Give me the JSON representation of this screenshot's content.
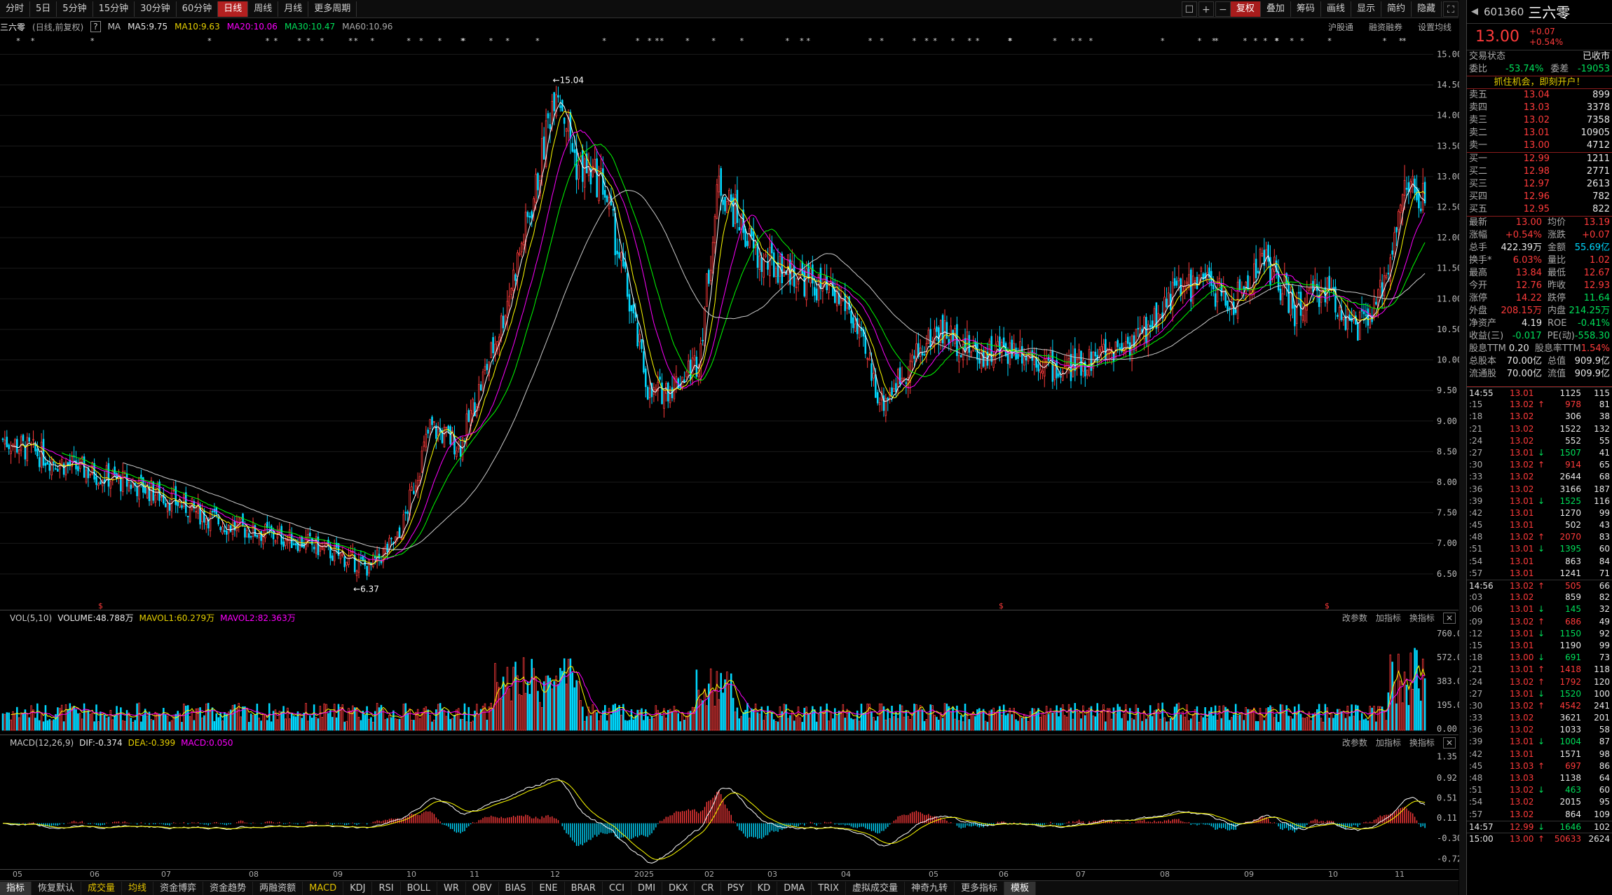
{
  "toolbar": {
    "periods": [
      "分时",
      "5日",
      "5分钟",
      "15分钟",
      "30分钟",
      "60分钟",
      "日线",
      "周线",
      "月线",
      "更多周期"
    ],
    "active": "日线",
    "right_icons": [
      "window-icon",
      "plus-icon",
      "minus-icon"
    ],
    "right": [
      "复权",
      "叠加",
      "筹码",
      "画线",
      "显示",
      "简约",
      "隐藏"
    ]
  },
  "chart_header": {
    "name": "三六零",
    "mode": "(日线,前复权)",
    "ma_label": "MA",
    "ma5": "MA5:9.75",
    "ma10": "MA10:9.63",
    "ma20": "MA20:10.06",
    "ma30": "MA30:10.47",
    "ma60": "MA60:10.96",
    "links": [
      "沪股通",
      "融资融券",
      "设置均线"
    ]
  },
  "price_axis": [
    "15.00",
    "14.50",
    "14.00",
    "13.50",
    "13.00",
    "12.50",
    "12.00",
    "11.50",
    "11.00",
    "10.50",
    "10.00",
    "9.50",
    "9.00",
    "8.50",
    "8.00",
    "7.50",
    "7.00",
    "6.50"
  ],
  "annotations": {
    "high": "15.04",
    "low": "6.37"
  },
  "vol_header": {
    "label": "VOL(5,10)",
    "volume": "VOLUME:48.788万",
    "mavol1": "MAVOL1:60.279万",
    "mavol2": "MAVOL2:82.363万",
    "actions": [
      "改参数",
      "加指标",
      "换指标"
    ]
  },
  "vol_axis": [
    "760.00",
    "572.00",
    "383.00",
    "195.00",
    "0.00"
  ],
  "macd_header": {
    "label": "MACD(12,26,9)",
    "dif": "DIF:-0.374",
    "dea": "DEA:-0.399",
    "macd": "MACD:0.050",
    "actions": [
      "改参数",
      "加指标",
      "换指标"
    ]
  },
  "macd_axis": [
    "1.35",
    "0.92",
    "0.51",
    "0.11",
    "-0.30",
    "-0.72"
  ],
  "date_labels": [
    "05",
    "06",
    "07",
    "08",
    "09",
    "10",
    "11",
    "12",
    "2025",
    "02",
    "03",
    "04",
    "05",
    "06",
    "07",
    "08",
    "09",
    "10",
    "11"
  ],
  "bottom_tabs": [
    "指标",
    "恢复默认",
    "成交量",
    "均线",
    "资金博弈",
    "资金趋势",
    "两融资额",
    "MACD",
    "KDJ",
    "RSI",
    "BOLL",
    "WR",
    "OBV",
    "BIAS",
    "ENE",
    "BRAR",
    "CCI",
    "DMI",
    "DKX",
    "CR",
    "PSY",
    "KD",
    "DMA",
    "TRIX",
    "虚拟成交量",
    "神奇九转",
    "更多指标",
    "模板"
  ],
  "quote": {
    "code": "601360",
    "name": "三六零",
    "price": "13.00",
    "change": "+0.07",
    "pct": "+0.54%",
    "status_label": "交易状态",
    "status": "已收市",
    "wb_label": "委比",
    "wb": "-53.74%",
    "wc_label": "委差",
    "wc": "-19053",
    "promo": "抓住机会，即刻开户！",
    "asks": [
      [
        "卖五",
        "13.04",
        "899"
      ],
      [
        "卖四",
        "13.03",
        "3378"
      ],
      [
        "卖三",
        "13.02",
        "7358"
      ],
      [
        "卖二",
        "13.01",
        "10905"
      ],
      [
        "卖一",
        "13.00",
        "4712"
      ]
    ],
    "bids": [
      [
        "买一",
        "12.99",
        "1211"
      ],
      [
        "买二",
        "12.98",
        "2771"
      ],
      [
        "买三",
        "12.97",
        "2613"
      ],
      [
        "买四",
        "12.96",
        "782"
      ],
      [
        "买五",
        "12.95",
        "822"
      ]
    ],
    "stats": [
      [
        "最新",
        "13.00",
        "均价",
        "13.19"
      ],
      [
        "涨幅",
        "+0.54%",
        "涨跌",
        "+0.07"
      ],
      [
        "总手",
        "422.39万",
        "金额",
        "55.69亿"
      ],
      [
        "换手*",
        "6.03%",
        "量比",
        "1.02"
      ],
      [
        "最高",
        "13.84",
        "最低",
        "12.67"
      ],
      [
        "今开",
        "12.76",
        "昨收",
        "12.93"
      ],
      [
        "涨停",
        "14.22",
        "跌停",
        "11.64"
      ],
      [
        "外盘",
        "208.15万",
        "内盘",
        "214.25万"
      ],
      [
        "净资产",
        "4.19",
        "ROE",
        "-0.41%"
      ],
      [
        "收益(三)",
        "-0.017",
        "PE(动)",
        "-558.30"
      ],
      [
        "股息TTM",
        "0.20",
        "股息率TTM",
        "1.54%"
      ],
      [
        "总股本",
        "70.00亿",
        "总值",
        "909.9亿"
      ],
      [
        "流通股",
        "70.00亿",
        "流值",
        "909.9亿"
      ]
    ],
    "ticks": [
      [
        "14:55",
        "13.01",
        "",
        "1125",
        "115"
      ],
      [
        ":15",
        "13.02",
        "↑",
        "978",
        "81"
      ],
      [
        ":18",
        "13.02",
        "",
        "306",
        "38"
      ],
      [
        ":21",
        "13.02",
        "",
        "1522",
        "132"
      ],
      [
        ":24",
        "13.02",
        "",
        "552",
        "55"
      ],
      [
        ":27",
        "13.01",
        "↓",
        "1507",
        "41"
      ],
      [
        ":30",
        "13.02",
        "↑",
        "914",
        "65"
      ],
      [
        ":33",
        "13.02",
        "",
        "2644",
        "68"
      ],
      [
        ":36",
        "13.02",
        "",
        "3166",
        "187"
      ],
      [
        ":39",
        "13.01",
        "↓",
        "1525",
        "116"
      ],
      [
        ":42",
        "13.01",
        "",
        "1270",
        "99"
      ],
      [
        ":45",
        "13.01",
        "",
        "502",
        "43"
      ],
      [
        ":48",
        "13.02",
        "↑",
        "2070",
        "83"
      ],
      [
        ":51",
        "13.01",
        "↓",
        "1395",
        "60"
      ],
      [
        ":54",
        "13.01",
        "",
        "863",
        "84"
      ],
      [
        ":57",
        "13.01",
        "",
        "1241",
        "71"
      ],
      [
        "14:56",
        "13.02",
        "↑",
        "505",
        "66"
      ],
      [
        ":03",
        "13.02",
        "",
        "859",
        "82"
      ],
      [
        ":06",
        "13.01",
        "↓",
        "145",
        "32"
      ],
      [
        ":09",
        "13.02",
        "↑",
        "686",
        "49"
      ],
      [
        ":12",
        "13.01",
        "↓",
        "1150",
        "92"
      ],
      [
        ":15",
        "13.01",
        "",
        "1190",
        "99"
      ],
      [
        ":18",
        "13.00",
        "↓",
        "691",
        "73"
      ],
      [
        ":21",
        "13.01",
        "↑",
        "1418",
        "118"
      ],
      [
        ":24",
        "13.02",
        "↑",
        "1792",
        "120"
      ],
      [
        ":27",
        "13.01",
        "↓",
        "1520",
        "100"
      ],
      [
        ":30",
        "13.02",
        "↑",
        "4542",
        "241"
      ],
      [
        ":33",
        "13.02",
        "",
        "3621",
        "201"
      ],
      [
        ":36",
        "13.02",
        "",
        "1033",
        "58"
      ],
      [
        ":39",
        "13.01",
        "↓",
        "1004",
        "87"
      ],
      [
        ":42",
        "13.01",
        "",
        "1571",
        "98"
      ],
      [
        ":45",
        "13.03",
        "↑",
        "697",
        "86"
      ],
      [
        ":48",
        "13.03",
        "",
        "1138",
        "64"
      ],
      [
        ":51",
        "13.02",
        "↓",
        "463",
        "60"
      ],
      [
        ":54",
        "13.02",
        "",
        "2015",
        "95"
      ],
      [
        ":57",
        "13.02",
        "",
        "864",
        "109"
      ],
      [
        "14:57",
        "12.99",
        "↓",
        "1646",
        "102"
      ],
      [
        "15:00",
        "13.00",
        "↑",
        "50633",
        "2624"
      ]
    ]
  },
  "colors": {
    "up": "#ff3b3b",
    "down": "#00d8ff",
    "ma5": "#ffffff",
    "ma10": "#ffff00",
    "ma20": "#ff00ff",
    "ma30": "#00ff00",
    "ma60": "#cccccc"
  }
}
